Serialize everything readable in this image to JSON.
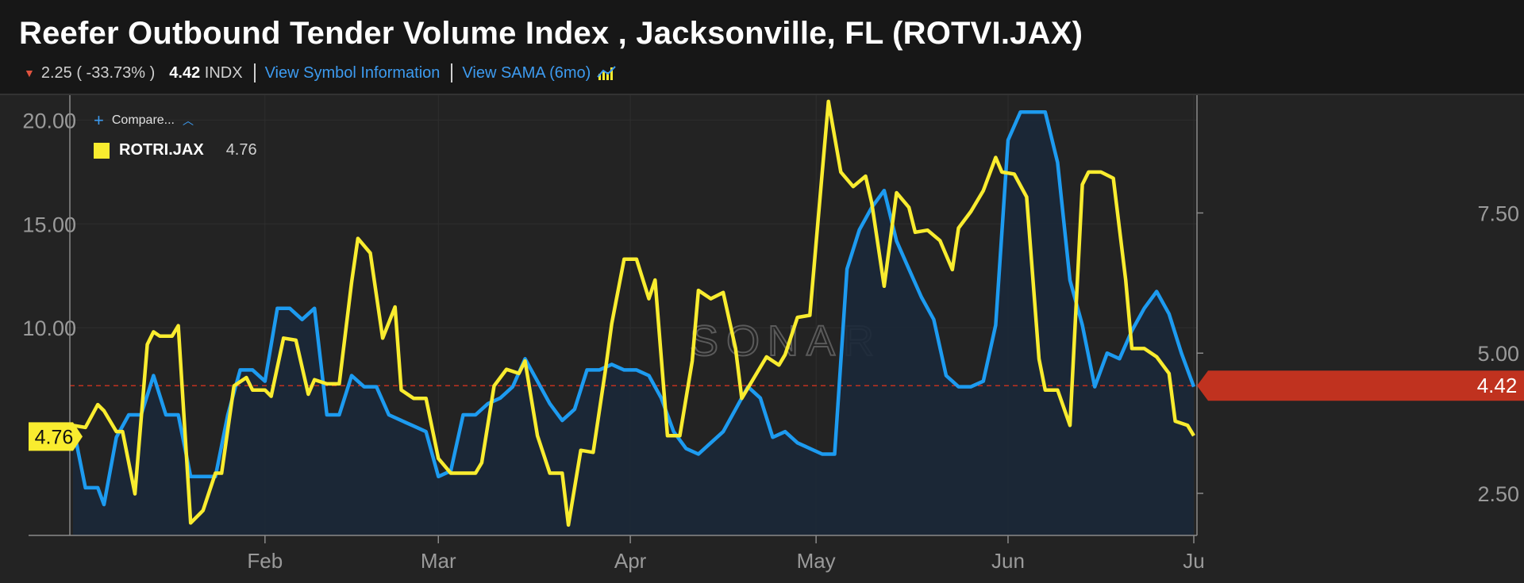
{
  "header": {
    "title": "Reefer Outbound Tender Volume Index , Jacksonville, FL (ROTVI.JAX)",
    "change": "2.25 ( -33.73% )",
    "last_value": "4.42",
    "last_unit": "INDX",
    "link_symbol_info": "View Symbol Information",
    "link_sama": "View SAMA (6mo)"
  },
  "legend": {
    "compare_label": "Compare...",
    "series_name": "ROTRI.JAX",
    "series_value": "4.76"
  },
  "watermark": "SONAR",
  "colors": {
    "background": "#232323",
    "header_bg": "#171717",
    "rotvi": "#1d9bf0",
    "rotvi_fill": "#1b2838",
    "rotri": "#f9ec2f",
    "badge_right": "#c0321f",
    "down_arrow": "#e0533f",
    "link": "#3d9bf0"
  },
  "icons": {
    "down": "down-arrow-icon",
    "plus": "plus-icon",
    "chevron": "chevron-up-icon",
    "sama": "chart-trend-icon"
  },
  "chart_data": {
    "type": "line",
    "x_range": [
      "2025-01-01",
      "2025-07-01"
    ],
    "x_ticks": [
      {
        "label": "Feb",
        "date": "2025-02-01"
      },
      {
        "label": "Mar",
        "date": "2025-03-01"
      },
      {
        "label": "Apr",
        "date": "2025-04-01"
      },
      {
        "label": "May",
        "date": "2025-05-01"
      },
      {
        "label": "Jun",
        "date": "2025-06-01"
      },
      {
        "label": "Ju",
        "date": "2025-07-01"
      }
    ],
    "y_left": {
      "ticks": [
        "20.00",
        "15.00",
        "10.00"
      ],
      "tick_values": [
        20,
        15,
        10
      ],
      "range": [
        0,
        21.2
      ]
    },
    "y_right": {
      "ticks": [
        "7.50",
        "5.00",
        "2.50"
      ],
      "tick_values": [
        7.5,
        5,
        2.5
      ],
      "range": [
        1.75,
        9.6
      ]
    },
    "grid": true,
    "legend_position": "top-left",
    "reference_value_right": 4.42,
    "badges": {
      "left": "4.76",
      "right": "4.42"
    },
    "series": [
      {
        "name": "ROTRI.JAX",
        "axis": "left",
        "color": "#f9ec2f",
        "x": [
          "2025-01-01",
          "2025-01-03",
          "2025-01-05",
          "2025-01-06",
          "2025-01-08",
          "2025-01-09",
          "2025-01-11",
          "2025-01-13",
          "2025-01-14",
          "2025-01-15",
          "2025-01-17",
          "2025-01-18",
          "2025-01-20",
          "2025-01-22",
          "2025-01-24",
          "2025-01-25",
          "2025-01-27",
          "2025-01-29",
          "2025-01-30",
          "2025-02-01",
          "2025-02-02",
          "2025-02-04",
          "2025-02-06",
          "2025-02-08",
          "2025-02-09",
          "2025-02-11",
          "2025-02-13",
          "2025-02-15",
          "2025-02-16",
          "2025-02-18",
          "2025-02-20",
          "2025-02-22",
          "2025-02-23",
          "2025-02-25",
          "2025-02-27",
          "2025-03-01",
          "2025-03-03",
          "2025-03-05",
          "2025-03-07",
          "2025-03-08",
          "2025-03-10",
          "2025-03-12",
          "2025-03-14",
          "2025-03-15",
          "2025-03-17",
          "2025-03-19",
          "2025-03-21",
          "2025-03-22",
          "2025-03-24",
          "2025-03-26",
          "2025-03-28",
          "2025-03-29",
          "2025-03-31",
          "2025-04-02",
          "2025-04-04",
          "2025-04-05",
          "2025-04-07",
          "2025-04-09",
          "2025-04-11",
          "2025-04-12",
          "2025-04-14",
          "2025-04-16",
          "2025-04-18",
          "2025-04-19",
          "2025-04-21",
          "2025-04-23",
          "2025-04-25",
          "2025-04-26",
          "2025-04-28",
          "2025-04-30",
          "2025-05-02",
          "2025-05-03",
          "2025-05-05",
          "2025-05-07",
          "2025-05-09",
          "2025-05-10",
          "2025-05-12",
          "2025-05-14",
          "2025-05-16",
          "2025-05-17",
          "2025-05-19",
          "2025-05-21",
          "2025-05-23",
          "2025-05-24",
          "2025-05-26",
          "2025-05-28",
          "2025-05-30",
          "2025-05-31",
          "2025-06-02",
          "2025-06-04",
          "2025-06-06",
          "2025-06-07",
          "2025-06-09",
          "2025-06-11",
          "2025-06-13",
          "2025-06-14",
          "2025-06-16",
          "2025-06-18",
          "2025-06-20",
          "2025-06-21",
          "2025-06-23",
          "2025-06-25",
          "2025-06-27",
          "2025-06-28",
          "2025-06-30",
          "2025-07-01"
        ],
        "values": [
          5.3,
          5.2,
          6.3,
          6.0,
          5.0,
          5.0,
          2.0,
          9.2,
          9.8,
          9.6,
          9.6,
          10.1,
          0.6,
          1.2,
          3.0,
          3.0,
          7.2,
          7.6,
          7.0,
          7.0,
          6.7,
          9.5,
          9.4,
          6.8,
          7.5,
          7.3,
          7.3,
          12.2,
          14.3,
          13.6,
          9.5,
          11.0,
          7.0,
          6.6,
          6.6,
          3.7,
          3.0,
          3.0,
          3.0,
          3.5,
          7.2,
          8.0,
          7.8,
          8.4,
          4.8,
          3.0,
          3.0,
          0.5,
          4.1,
          4.0,
          8.0,
          10.2,
          13.3,
          13.3,
          11.4,
          12.3,
          4.8,
          4.8,
          8.4,
          11.8,
          11.4,
          11.7,
          9.0,
          6.6,
          7.6,
          8.6,
          8.2,
          8.7,
          10.5,
          10.6,
          17.5,
          20.9,
          17.5,
          16.8,
          17.3,
          16.0,
          12.0,
          16.5,
          15.8,
          14.6,
          14.7,
          14.2,
          12.8,
          14.8,
          15.6,
          16.6,
          18.2,
          17.5,
          17.4,
          16.3,
          8.5,
          7.0,
          7.0,
          5.3,
          16.9,
          17.5,
          17.5,
          17.2,
          12.3,
          9.0,
          9.0,
          8.6,
          7.8,
          5.5,
          5.3,
          4.8
        ],
        "last_value": 4.76
      },
      {
        "name": "ROTVI.JAX",
        "axis": "right",
        "color": "#1d9bf0",
        "x": [
          "2025-01-01",
          "2025-01-03",
          "2025-01-05",
          "2025-01-06",
          "2025-01-08",
          "2025-01-10",
          "2025-01-12",
          "2025-01-14",
          "2025-01-16",
          "2025-01-18",
          "2025-01-20",
          "2025-01-22",
          "2025-01-24",
          "2025-01-26",
          "2025-01-28",
          "2025-01-30",
          "2025-02-01",
          "2025-02-03",
          "2025-02-05",
          "2025-02-07",
          "2025-02-09",
          "2025-02-11",
          "2025-02-13",
          "2025-02-15",
          "2025-02-17",
          "2025-02-19",
          "2025-02-21",
          "2025-02-23",
          "2025-02-25",
          "2025-02-27",
          "2025-03-01",
          "2025-03-03",
          "2025-03-05",
          "2025-03-07",
          "2025-03-09",
          "2025-03-11",
          "2025-03-13",
          "2025-03-15",
          "2025-03-17",
          "2025-03-19",
          "2025-03-21",
          "2025-03-23",
          "2025-03-25",
          "2025-03-27",
          "2025-03-29",
          "2025-03-31",
          "2025-04-02",
          "2025-04-04",
          "2025-04-06",
          "2025-04-08",
          "2025-04-10",
          "2025-04-12",
          "2025-04-14",
          "2025-04-16",
          "2025-04-18",
          "2025-04-20",
          "2025-04-22",
          "2025-04-24",
          "2025-04-26",
          "2025-04-28",
          "2025-04-30",
          "2025-05-02",
          "2025-05-04",
          "2025-05-06",
          "2025-05-08",
          "2025-05-10",
          "2025-05-12",
          "2025-05-14",
          "2025-05-16",
          "2025-05-18",
          "2025-05-20",
          "2025-05-22",
          "2025-05-24",
          "2025-05-26",
          "2025-05-28",
          "2025-05-30",
          "2025-06-01",
          "2025-06-03",
          "2025-06-05",
          "2025-06-07",
          "2025-06-09",
          "2025-06-11",
          "2025-06-13",
          "2025-06-15",
          "2025-06-17",
          "2025-06-19",
          "2025-06-21",
          "2025-06-23",
          "2025-06-25",
          "2025-06-27",
          "2025-06-29",
          "2025-07-01"
        ],
        "values": [
          3.7,
          2.6,
          2.6,
          2.3,
          3.5,
          3.9,
          3.9,
          4.6,
          3.9,
          3.9,
          2.8,
          2.8,
          2.8,
          3.9,
          4.7,
          4.7,
          4.5,
          5.8,
          5.8,
          5.6,
          5.8,
          3.9,
          3.9,
          4.6,
          4.4,
          4.4,
          3.9,
          3.8,
          3.7,
          3.6,
          2.8,
          2.9,
          3.9,
          3.9,
          4.1,
          4.2,
          4.4,
          4.9,
          4.5,
          4.1,
          3.8,
          4.0,
          4.7,
          4.7,
          4.8,
          4.7,
          4.7,
          4.6,
          4.2,
          3.6,
          3.3,
          3.2,
          3.4,
          3.6,
          4.0,
          4.4,
          4.2,
          3.5,
          3.6,
          3.4,
          3.3,
          3.2,
          3.2,
          6.5,
          7.2,
          7.6,
          7.9,
          7.0,
          6.5,
          6.0,
          5.6,
          4.6,
          4.4,
          4.4,
          4.5,
          5.5,
          8.8,
          9.3,
          9.3,
          9.3,
          8.4,
          6.3,
          5.5,
          4.4,
          5.0,
          4.9,
          5.4,
          5.8,
          6.1,
          5.7,
          5.0,
          4.4
        ],
        "last_value": 4.42
      }
    ]
  }
}
